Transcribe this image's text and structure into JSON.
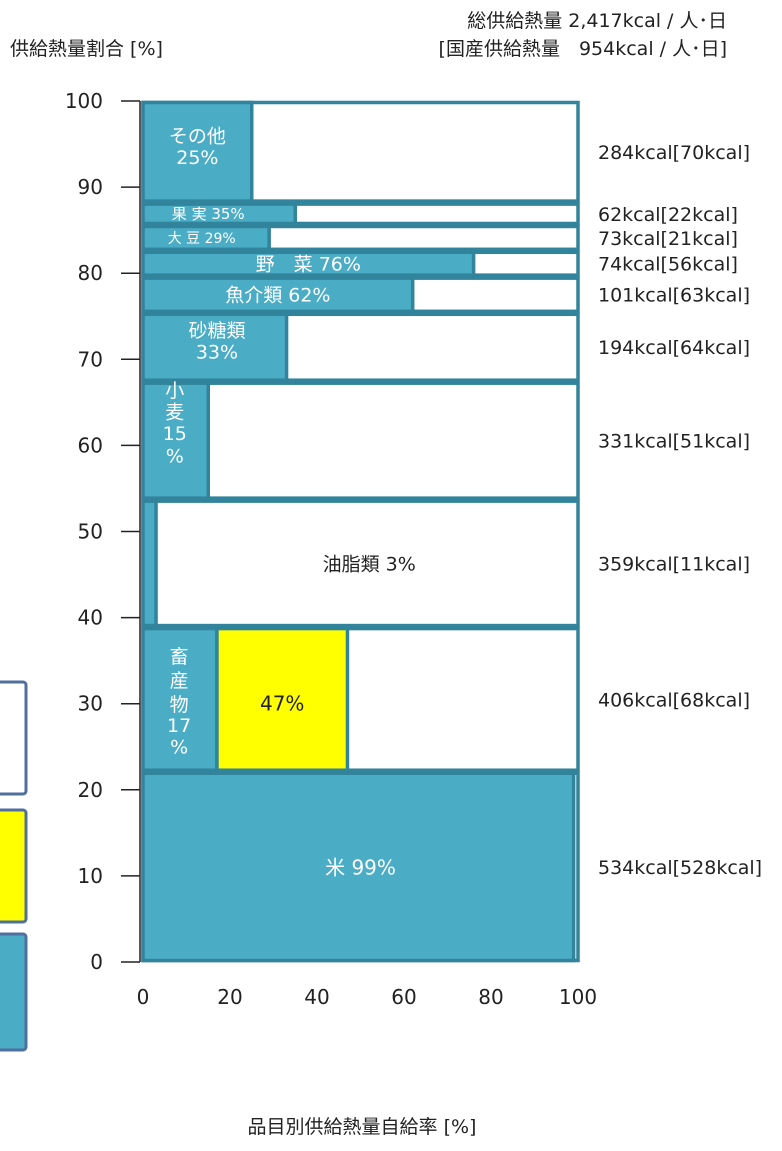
{
  "header": {
    "total_line": "総供給熱量 2,417kcal / 人･日",
    "domestic_line": "[国産供給熱量　954kcal / 人･日]"
  },
  "chart_data": {
    "type": "mosaic-bar",
    "ylabel": "供給熱量割合 [%]",
    "xlabel": "品目別供給熱量自給率 [%]",
    "xlim": [
      0,
      100
    ],
    "ylim": [
      0,
      100
    ],
    "x_ticks": [
      "0",
      "20",
      "40",
      "60",
      "80",
      "100"
    ],
    "y_ticks": [
      "0",
      "10",
      "20",
      "30",
      "40",
      "50",
      "60",
      "70",
      "80",
      "90",
      "100"
    ],
    "colors": {
      "domestic": "#4bacc6",
      "feed_import": "#ffff00",
      "border": "#31849b",
      "legend_border": "#4f6fa0"
    },
    "items": [
      {
        "name": "米",
        "rate_label": "99%",
        "y_from": 0,
        "y_to": 22.1,
        "self_sufficiency": 99,
        "kcal": "534kcal[528kcal]"
      },
      {
        "name": "畜産物",
        "rate_label": "17%",
        "y_from": 22.1,
        "y_to": 38.9,
        "self_sufficiency": 17,
        "feed_adjusted_rate": 47,
        "feed_label": "47%",
        "kcal": "406kcal[68kcal]"
      },
      {
        "name": "油脂類",
        "rate_label": "3%",
        "y_from": 38.9,
        "y_to": 53.7,
        "self_sufficiency": 3,
        "kcal": "359kcal[11kcal]"
      },
      {
        "name": "小麦",
        "rate_label": "15%",
        "y_from": 53.7,
        "y_to": 67.4,
        "self_sufficiency": 15,
        "kcal": "331kcal[51kcal]"
      },
      {
        "name": "砂糖類",
        "rate_label": "33%",
        "y_from": 67.4,
        "y_to": 75.4,
        "self_sufficiency": 33,
        "kcal": "194kcal[64kcal]"
      },
      {
        "name": "魚介類",
        "rate_label": "62%",
        "y_from": 75.4,
        "y_to": 79.6,
        "self_sufficiency": 62,
        "kcal": "101kcal[63kcal]"
      },
      {
        "name": "野　菜",
        "rate_label": "76%",
        "y_from": 79.6,
        "y_to": 82.6,
        "self_sufficiency": 76,
        "kcal": "74kcal[56kcal]"
      },
      {
        "name": "大 豆",
        "rate_label": "29%",
        "y_from": 82.6,
        "y_to": 85.6,
        "self_sufficiency": 29,
        "kcal": "73kcal[21kcal]"
      },
      {
        "name": "果 実",
        "rate_label": "35%",
        "y_from": 85.6,
        "y_to": 88.2,
        "self_sufficiency": 35,
        "kcal": "62kcal[22kcal]"
      },
      {
        "name": "その他",
        "rate_label": "25%",
        "y_from": 88.2,
        "y_to": 100,
        "self_sufficiency": 25,
        "kcal": "284kcal[70kcal]"
      }
    ]
  }
}
